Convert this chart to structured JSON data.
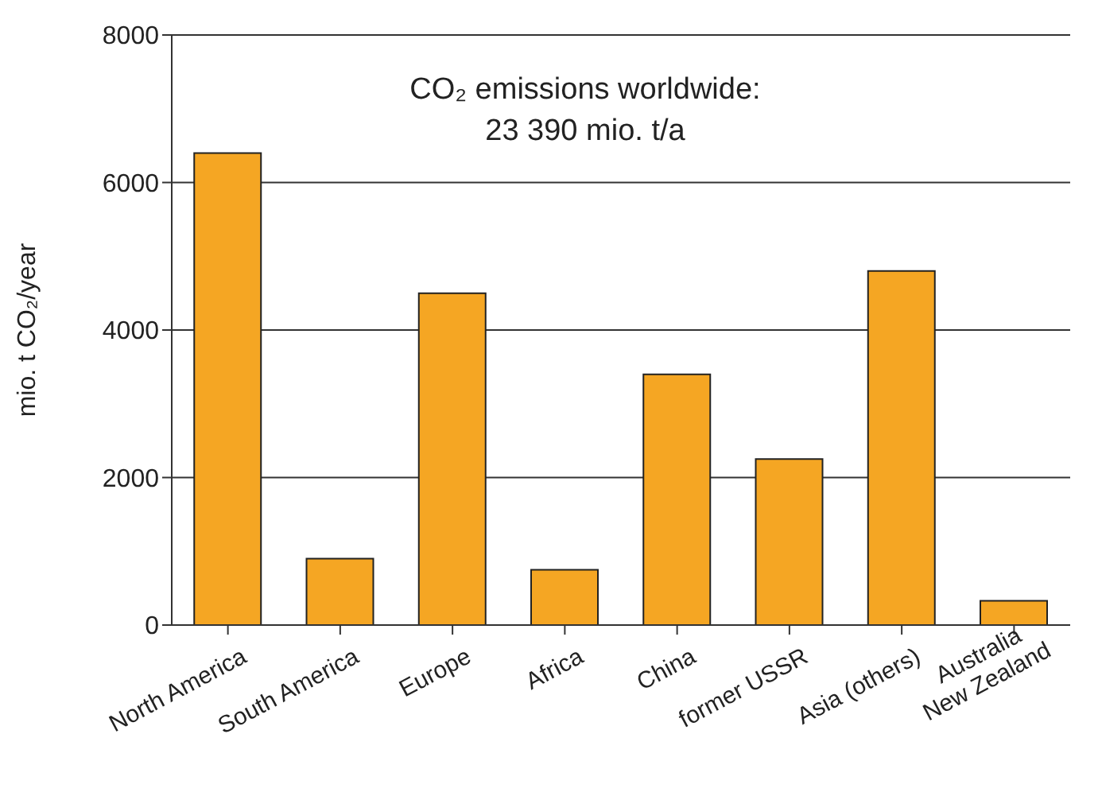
{
  "chart_data": {
    "type": "bar",
    "ylabel": "mio. t CO₂/year",
    "annotations": [
      "CO₂ emissions worldwide:\n23 390 mio. t/a"
    ],
    "categories": [
      "North America",
      "South America",
      "Europe",
      "Africa",
      "China",
      "former USSR",
      "Asia (others)",
      "Australia\nNew Zealand"
    ],
    "values": [
      6400,
      900,
      4500,
      750,
      3400,
      2250,
      4800,
      330
    ],
    "color": "#f5a623",
    "ylim": [
      0,
      8000
    ],
    "yticks": [
      0,
      2000,
      4000,
      6000,
      8000
    ],
    "grid": "y",
    "legend": false
  }
}
